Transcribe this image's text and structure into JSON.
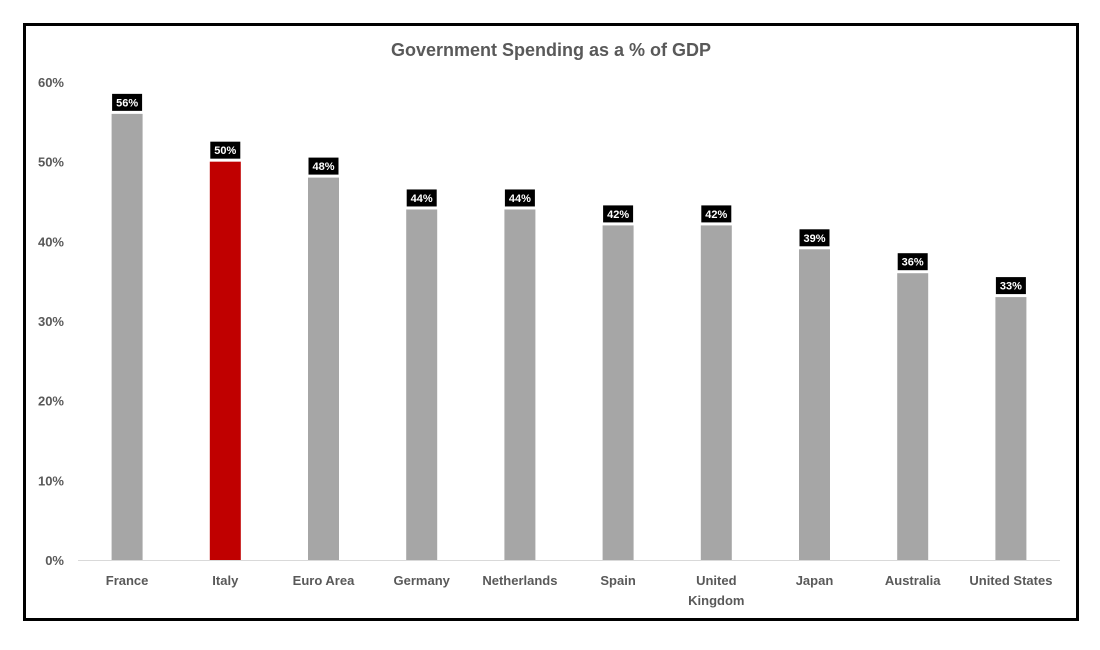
{
  "chart_data": {
    "type": "bar",
    "title": "Government Spending as a % of GDP",
    "xlabel": "",
    "ylabel": "",
    "categories": [
      "France",
      "Italy",
      "Euro Area",
      "Germany",
      "Netherlands",
      "Spain",
      "United Kingdom",
      "Japan",
      "Australia",
      "United States"
    ],
    "category_lines": [
      [
        "France"
      ],
      [
        "Italy"
      ],
      [
        "Euro Area"
      ],
      [
        "Germany"
      ],
      [
        "Netherlands"
      ],
      [
        "Spain"
      ],
      [
        "United",
        "Kingdom"
      ],
      [
        "Japan"
      ],
      [
        "Australia"
      ],
      [
        "United States"
      ]
    ],
    "values": [
      56,
      50,
      48,
      44,
      44,
      42,
      42,
      39,
      36,
      33
    ],
    "data_labels": [
      "56%",
      "50%",
      "48%",
      "44%",
      "44%",
      "42%",
      "42%",
      "39%",
      "36%",
      "33%"
    ],
    "ylim": [
      0,
      60
    ],
    "yticks": [
      0,
      10,
      20,
      30,
      40,
      50,
      60
    ],
    "ytick_labels": [
      "0%",
      "10%",
      "20%",
      "30%",
      "40%",
      "50%",
      "60%"
    ],
    "grid": false,
    "legend": "none",
    "colors": {
      "default_bar": "#a6a6a6",
      "highlight_bar": "#c00000",
      "label_box": "#000000"
    },
    "highlight_category": "Italy"
  }
}
